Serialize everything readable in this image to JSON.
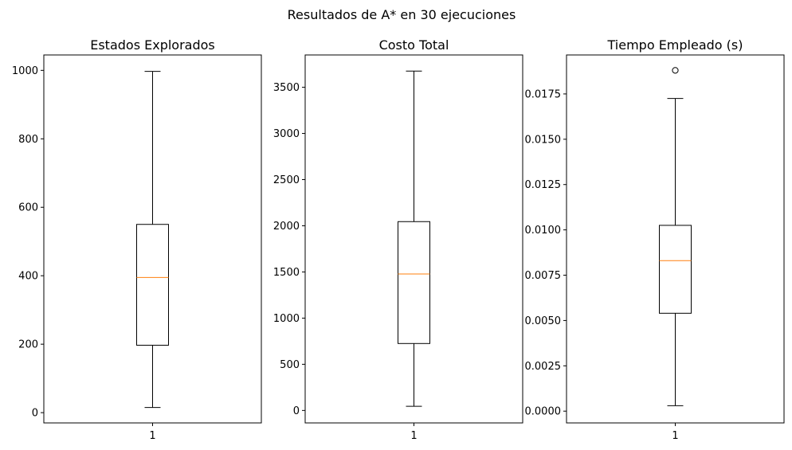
{
  "figure": {
    "suptitle": "Resultados de A* en 30 ejecuciones"
  },
  "chart_data": [
    {
      "type": "box",
      "title": "Estados Explorados",
      "xlabel": "",
      "ylabel": "",
      "categories": [
        "1"
      ],
      "ylim": [
        -30,
        1045
      ],
      "yticks": [
        0,
        200,
        400,
        600,
        800,
        1000
      ],
      "ytick_labels": [
        "0",
        "200",
        "400",
        "600",
        "800",
        "1000"
      ],
      "stats": {
        "whisker_low": 15,
        "q1": 197,
        "median": 395,
        "q3": 550,
        "whisker_high": 997,
        "outliers": []
      },
      "colors": {
        "box": "#000000",
        "median": "#ff7f0e"
      },
      "grid": false
    },
    {
      "type": "box",
      "title": "Costo Total",
      "xlabel": "",
      "ylabel": "",
      "categories": [
        "1"
      ],
      "ylim": [
        -135,
        3850
      ],
      "yticks": [
        0,
        500,
        1000,
        1500,
        2000,
        2500,
        3000,
        3500
      ],
      "ytick_labels": [
        "0",
        "500",
        "1000",
        "1500",
        "2000",
        "2500",
        "3000",
        "3500"
      ],
      "stats": {
        "whisker_low": 45,
        "q1": 725,
        "median": 1478,
        "q3": 2045,
        "whisker_high": 3675,
        "outliers": []
      },
      "colors": {
        "box": "#000000",
        "median": "#ff7f0e"
      },
      "grid": false
    },
    {
      "type": "box",
      "title": "Tiempo Empleado (s)",
      "xlabel": "",
      "ylabel": "",
      "categories": [
        "1"
      ],
      "ylim": [
        -0.00065,
        0.01965
      ],
      "yticks": [
        0.0,
        0.0025,
        0.005,
        0.0075,
        0.01,
        0.0125,
        0.015,
        0.0175
      ],
      "ytick_labels": [
        "0.0000",
        "0.0025",
        "0.0050",
        "0.0075",
        "0.0100",
        "0.0125",
        "0.0150",
        "0.0175"
      ],
      "stats": {
        "whisker_low": 0.0003,
        "q1": 0.0054,
        "median": 0.0083,
        "q3": 0.01025,
        "whisker_high": 0.01725,
        "outliers": [
          0.0188
        ]
      },
      "colors": {
        "box": "#000000",
        "median": "#ff7f0e"
      },
      "grid": false
    }
  ]
}
